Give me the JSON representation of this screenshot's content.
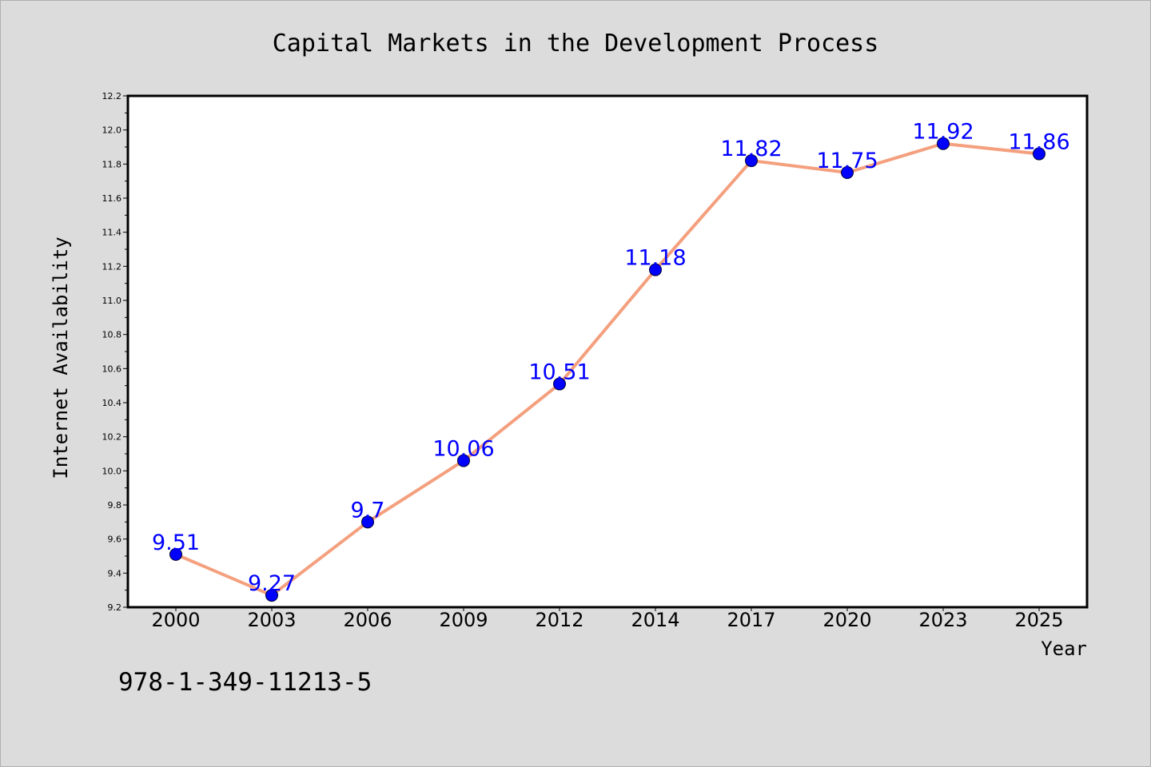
{
  "chart_data": {
    "type": "line",
    "title": "Capital Markets in the Development Process",
    "xlabel": "Year",
    "ylabel": "Internet Availability",
    "categories": [
      "2000",
      "2003",
      "2006",
      "2009",
      "2012",
      "2014",
      "2017",
      "2020",
      "2023",
      "2025"
    ],
    "series": [
      {
        "values": [
          9.51,
          9.27,
          9.7,
          10.06,
          10.51,
          11.18,
          11.82,
          11.75,
          11.92,
          11.86
        ],
        "data_labels": [
          "9.51",
          "9.27",
          "9.7",
          "10.06",
          "10.51",
          "11.18",
          "11.82",
          "11.75",
          "11.92",
          "11.86"
        ]
      }
    ],
    "ylim": [
      9.2,
      12.2
    ],
    "yticks": [
      "9.2",
      "9.4",
      "9.6",
      "9.8",
      "10.0",
      "10.2",
      "10.4",
      "10.6",
      "10.8",
      "11.0",
      "11.2",
      "11.4",
      "11.6",
      "11.8",
      "12.0",
      "12.2"
    ],
    "grid": false,
    "line_color": "#f4a07e",
    "marker_color": "#0000ff",
    "label_color": "#0000ff"
  },
  "footer": {
    "isbn": "978-1-349-11213-5"
  }
}
